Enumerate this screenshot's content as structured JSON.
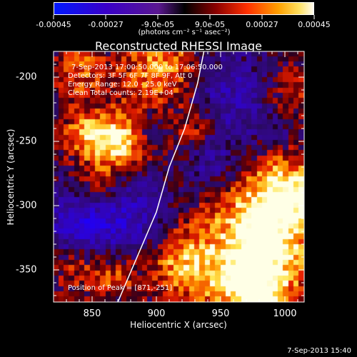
{
  "colorbar": {
    "tick_labels": [
      "-0.00045",
      "-0.00027",
      "-9.0e-05",
      "9.0e-05",
      "0.00027",
      "0.00045"
    ],
    "unit_label": "(photons cm⁻² s⁻¹ asec⁻²)",
    "colors": [
      "#0000ff",
      "#4b0082",
      "#6a2bb0",
      "#000000",
      "#7a0000",
      "#ff2a00",
      "#ff8c00",
      "#ffd700",
      "#ffffff"
    ]
  },
  "chart_data": {
    "type": "heatmap",
    "title": "Reconstructed RHESSI Image",
    "xlabel": "Heliocentric X (arcsec)",
    "ylabel": "Heliocentric Y (arcsec)",
    "xlim": [
      820,
      1015
    ],
    "ylim": [
      -375,
      -180
    ],
    "xticks": [
      850,
      900,
      950,
      1000
    ],
    "yticks": [
      -200,
      -250,
      -300,
      -350
    ],
    "clim": [
      -0.00045,
      0.00045
    ],
    "peak_position": [
      871,
      -251
    ],
    "annotations": [
      "7-Sep-2013 17:00:50.000 to 17:06:50.000",
      "Detectors: 3F 5F 6F 7F 8F 9F, Att 0",
      "Energy Range: 12.0 - 25.0 keV",
      "Clean     Total counts: 2.19E+04",
      "Position of Peak = [871,-251]"
    ],
    "limb_curve": [
      [
        870,
        -375
      ],
      [
        885,
        -340
      ],
      [
        900,
        -305
      ],
      [
        910,
        -270
      ],
      [
        922,
        -240
      ],
      [
        932,
        -205
      ],
      [
        937,
        -180
      ]
    ]
  },
  "footer": {
    "date": "7-Sep-2013 15:40"
  }
}
